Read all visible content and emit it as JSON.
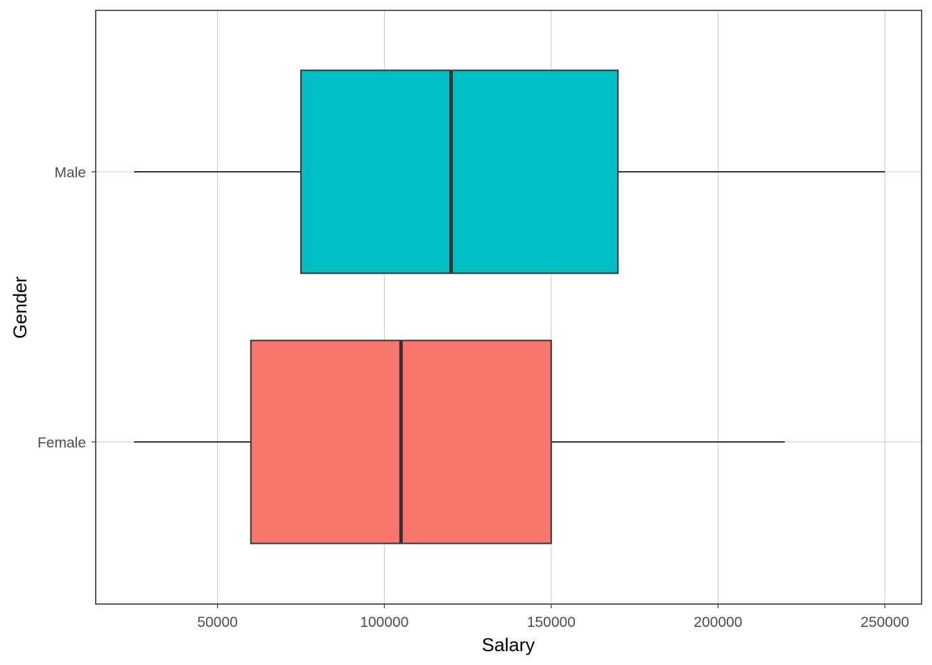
{
  "chart_data": {
    "type": "boxplot",
    "orientation": "horizontal",
    "xlabel": "Salary",
    "ylabel": "Gender",
    "xlim": [
      13500,
      261000
    ],
    "xticks": [
      50000,
      100000,
      150000,
      200000,
      250000
    ],
    "xtick_labels": [
      "50000",
      "100000",
      "150000",
      "200000",
      "250000"
    ],
    "grid": true,
    "legend": "none",
    "categories": [
      "Female",
      "Male"
    ],
    "boxes": [
      {
        "category": "Female",
        "whisker_low": 25000,
        "q1": 60000,
        "median": 105000,
        "q3": 150000,
        "whisker_high": 220000,
        "color": "#F8766D"
      },
      {
        "category": "Male",
        "whisker_low": 25000,
        "q1": 75000,
        "median": 120000,
        "q3": 170000,
        "whisker_high": 250000,
        "color": "#00BFC4"
      }
    ]
  }
}
